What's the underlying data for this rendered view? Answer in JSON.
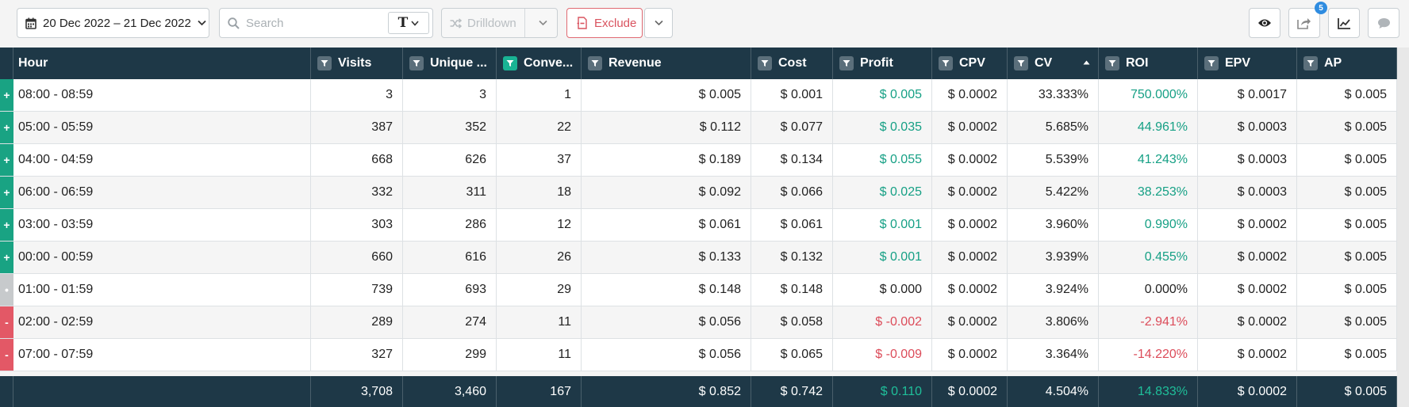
{
  "toolbar": {
    "date_range": "20 Dec 2022 – 21 Dec 2022",
    "search_placeholder": "Search",
    "text_type_glyph": "T",
    "drilldown_label": "Drilldown",
    "exclude_label": "Exclude",
    "badge_count": "5",
    "icons": [
      "calendar-icon",
      "search-icon",
      "shuffle-icon",
      "exclude-icon",
      "eye-icon",
      "share-icon",
      "chart-icon",
      "chat-icon"
    ]
  },
  "columns": [
    {
      "key": "hour",
      "label": "Hour",
      "filter": false
    },
    {
      "key": "visits",
      "label": "Visits",
      "filter": true
    },
    {
      "key": "unique",
      "label": "Unique ...",
      "filter": true
    },
    {
      "key": "conversions",
      "label": "Conve...",
      "filter": true,
      "active": true
    },
    {
      "key": "revenue",
      "label": "Revenue",
      "filter": true
    },
    {
      "key": "cost",
      "label": "Cost",
      "filter": true
    },
    {
      "key": "profit",
      "label": "Profit",
      "filter": true
    },
    {
      "key": "cpv",
      "label": "CPV",
      "filter": true
    },
    {
      "key": "cv",
      "label": "CV",
      "filter": true,
      "sorted": "asc"
    },
    {
      "key": "roi",
      "label": "ROI",
      "filter": true
    },
    {
      "key": "epv",
      "label": "EPV",
      "filter": true
    },
    {
      "key": "ap",
      "label": "AP",
      "filter": true
    }
  ],
  "rows": [
    {
      "status": "pos",
      "marker": "+",
      "hour": "08:00 - 08:59",
      "visits": "3",
      "unique": "3",
      "conversions": "1",
      "revenue": "$ 0.005",
      "cost": "$ 0.001",
      "profit": "$ 0.005",
      "cpv": "$ 0.0002",
      "cv": "33.333%",
      "roi": "750.000%",
      "epv": "$ 0.0017",
      "ap": "$ 0.005"
    },
    {
      "status": "pos",
      "marker": "+",
      "hour": "05:00 - 05:59",
      "visits": "387",
      "unique": "352",
      "conversions": "22",
      "revenue": "$ 0.112",
      "cost": "$ 0.077",
      "profit": "$ 0.035",
      "cpv": "$ 0.0002",
      "cv": "5.685%",
      "roi": "44.961%",
      "epv": "$ 0.0003",
      "ap": "$ 0.005"
    },
    {
      "status": "pos",
      "marker": "+",
      "hour": "04:00 - 04:59",
      "visits": "668",
      "unique": "626",
      "conversions": "37",
      "revenue": "$ 0.189",
      "cost": "$ 0.134",
      "profit": "$ 0.055",
      "cpv": "$ 0.0002",
      "cv": "5.539%",
      "roi": "41.243%",
      "epv": "$ 0.0003",
      "ap": "$ 0.005"
    },
    {
      "status": "pos",
      "marker": "+",
      "hour": "06:00 - 06:59",
      "visits": "332",
      "unique": "311",
      "conversions": "18",
      "revenue": "$ 0.092",
      "cost": "$ 0.066",
      "profit": "$ 0.025",
      "cpv": "$ 0.0002",
      "cv": "5.422%",
      "roi": "38.253%",
      "epv": "$ 0.0003",
      "ap": "$ 0.005"
    },
    {
      "status": "pos",
      "marker": "+",
      "hour": "03:00 - 03:59",
      "visits": "303",
      "unique": "286",
      "conversions": "12",
      "revenue": "$ 0.061",
      "cost": "$ 0.061",
      "profit": "$ 0.001",
      "cpv": "$ 0.0002",
      "cv": "3.960%",
      "roi": "0.990%",
      "epv": "$ 0.0002",
      "ap": "$ 0.005"
    },
    {
      "status": "pos",
      "marker": "+",
      "hour": "00:00 - 00:59",
      "visits": "660",
      "unique": "616",
      "conversions": "26",
      "revenue": "$ 0.133",
      "cost": "$ 0.132",
      "profit": "$ 0.001",
      "cpv": "$ 0.0002",
      "cv": "3.939%",
      "roi": "0.455%",
      "epv": "$ 0.0002",
      "ap": "$ 0.005"
    },
    {
      "status": "neu",
      "marker": "•",
      "hour": "01:00 - 01:59",
      "visits": "739",
      "unique": "693",
      "conversions": "29",
      "revenue": "$ 0.148",
      "cost": "$ 0.148",
      "profit": "$ 0.000",
      "cpv": "$ 0.0002",
      "cv": "3.924%",
      "roi": "0.000%",
      "epv": "$ 0.0002",
      "ap": "$ 0.005"
    },
    {
      "status": "neg",
      "marker": "-",
      "hour": "02:00 - 02:59",
      "visits": "289",
      "unique": "274",
      "conversions": "11",
      "revenue": "$ 0.056",
      "cost": "$ 0.058",
      "profit": "$ -0.002",
      "cpv": "$ 0.0002",
      "cv": "3.806%",
      "roi": "-2.941%",
      "epv": "$ 0.0002",
      "ap": "$ 0.005"
    },
    {
      "status": "neg",
      "marker": "-",
      "hour": "07:00 - 07:59",
      "visits": "327",
      "unique": "299",
      "conversions": "11",
      "revenue": "$ 0.056",
      "cost": "$ 0.065",
      "profit": "$ -0.009",
      "cpv": "$ 0.0002",
      "cv": "3.364%",
      "roi": "-14.220%",
      "epv": "$ 0.0002",
      "ap": "$ 0.005"
    }
  ],
  "totals": {
    "hour": "",
    "visits": "3,708",
    "unique": "3,460",
    "conversions": "167",
    "revenue": "$ 0.852",
    "cost": "$ 0.742",
    "profit": "$ 0.110",
    "cpv": "$ 0.0002",
    "cv": "4.504%",
    "roi": "14.833%",
    "epv": "$ 0.0002",
    "ap": "$ 0.005"
  },
  "colors": {
    "header_bg": "#1e3847",
    "positive": "#16a085",
    "negative": "#dc4c5a",
    "accent": "#19b394"
  }
}
